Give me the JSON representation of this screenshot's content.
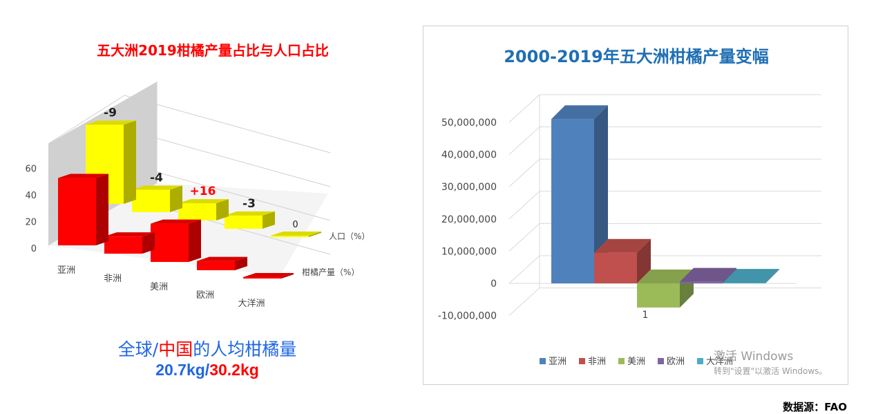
{
  "chart_data": [
    {
      "type": "bar",
      "title": "五大洲2019柑橘产量占比与人口占比",
      "categories": [
        "亚洲",
        "非洲",
        "美洲",
        "欧洲",
        "大洋洲"
      ],
      "series": [
        {
          "name": "人口（%）",
          "values": [
            60,
            17,
            13,
            10,
            1
          ],
          "color": "#ffff00"
        },
        {
          "name": "柑橘产量（%）",
          "values": [
            51,
            13,
            29,
            7,
            1
          ],
          "color": "#ff0000"
        }
      ],
      "annotations": [
        "-9",
        "-4",
        "+16",
        "-3",
        "0"
      ],
      "annotation_colors": [
        "#222222",
        "#222222",
        "#ff0000",
        "#222222",
        "#222222"
      ],
      "y_ticks": [
        "0",
        "20",
        "40",
        "60"
      ],
      "ylim": [
        0,
        60
      ]
    },
    {
      "type": "bar",
      "title": "2000-2019年五大洲柑橘产量变幅",
      "categories": [
        "亚洲",
        "非洲",
        "美洲",
        "欧洲",
        "大洋洲"
      ],
      "values": [
        51000000,
        9500000,
        -7500000,
        500000,
        200000
      ],
      "colors": [
        "#4f81bd",
        "#c0504d",
        "#9bbb59",
        "#8064a2",
        "#4bacc6"
      ],
      "y_ticks": [
        "-10,000,000",
        "0",
        "10,000,000",
        "20,000,000",
        "30,000,000",
        "40,000,000",
        "50,000,000"
      ],
      "ylim": [
        -10000000,
        50000000
      ],
      "data_label": "1",
      "legend": [
        "亚洲",
        "非洲",
        "美洲",
        "欧洲",
        "大洋洲"
      ],
      "legend_position": "bottom"
    }
  ],
  "per_capita": {
    "line1_a": "全球/",
    "line1_b": "中国",
    "line1_c": "的人均柑橘量",
    "line2_a": "20.7kg/",
    "line2_b": "30.2kg"
  },
  "source": "数据源：FAO",
  "watermark": {
    "line1": "激活 Windows",
    "line2": "转到\"设置\"以激活 Windows。"
  }
}
